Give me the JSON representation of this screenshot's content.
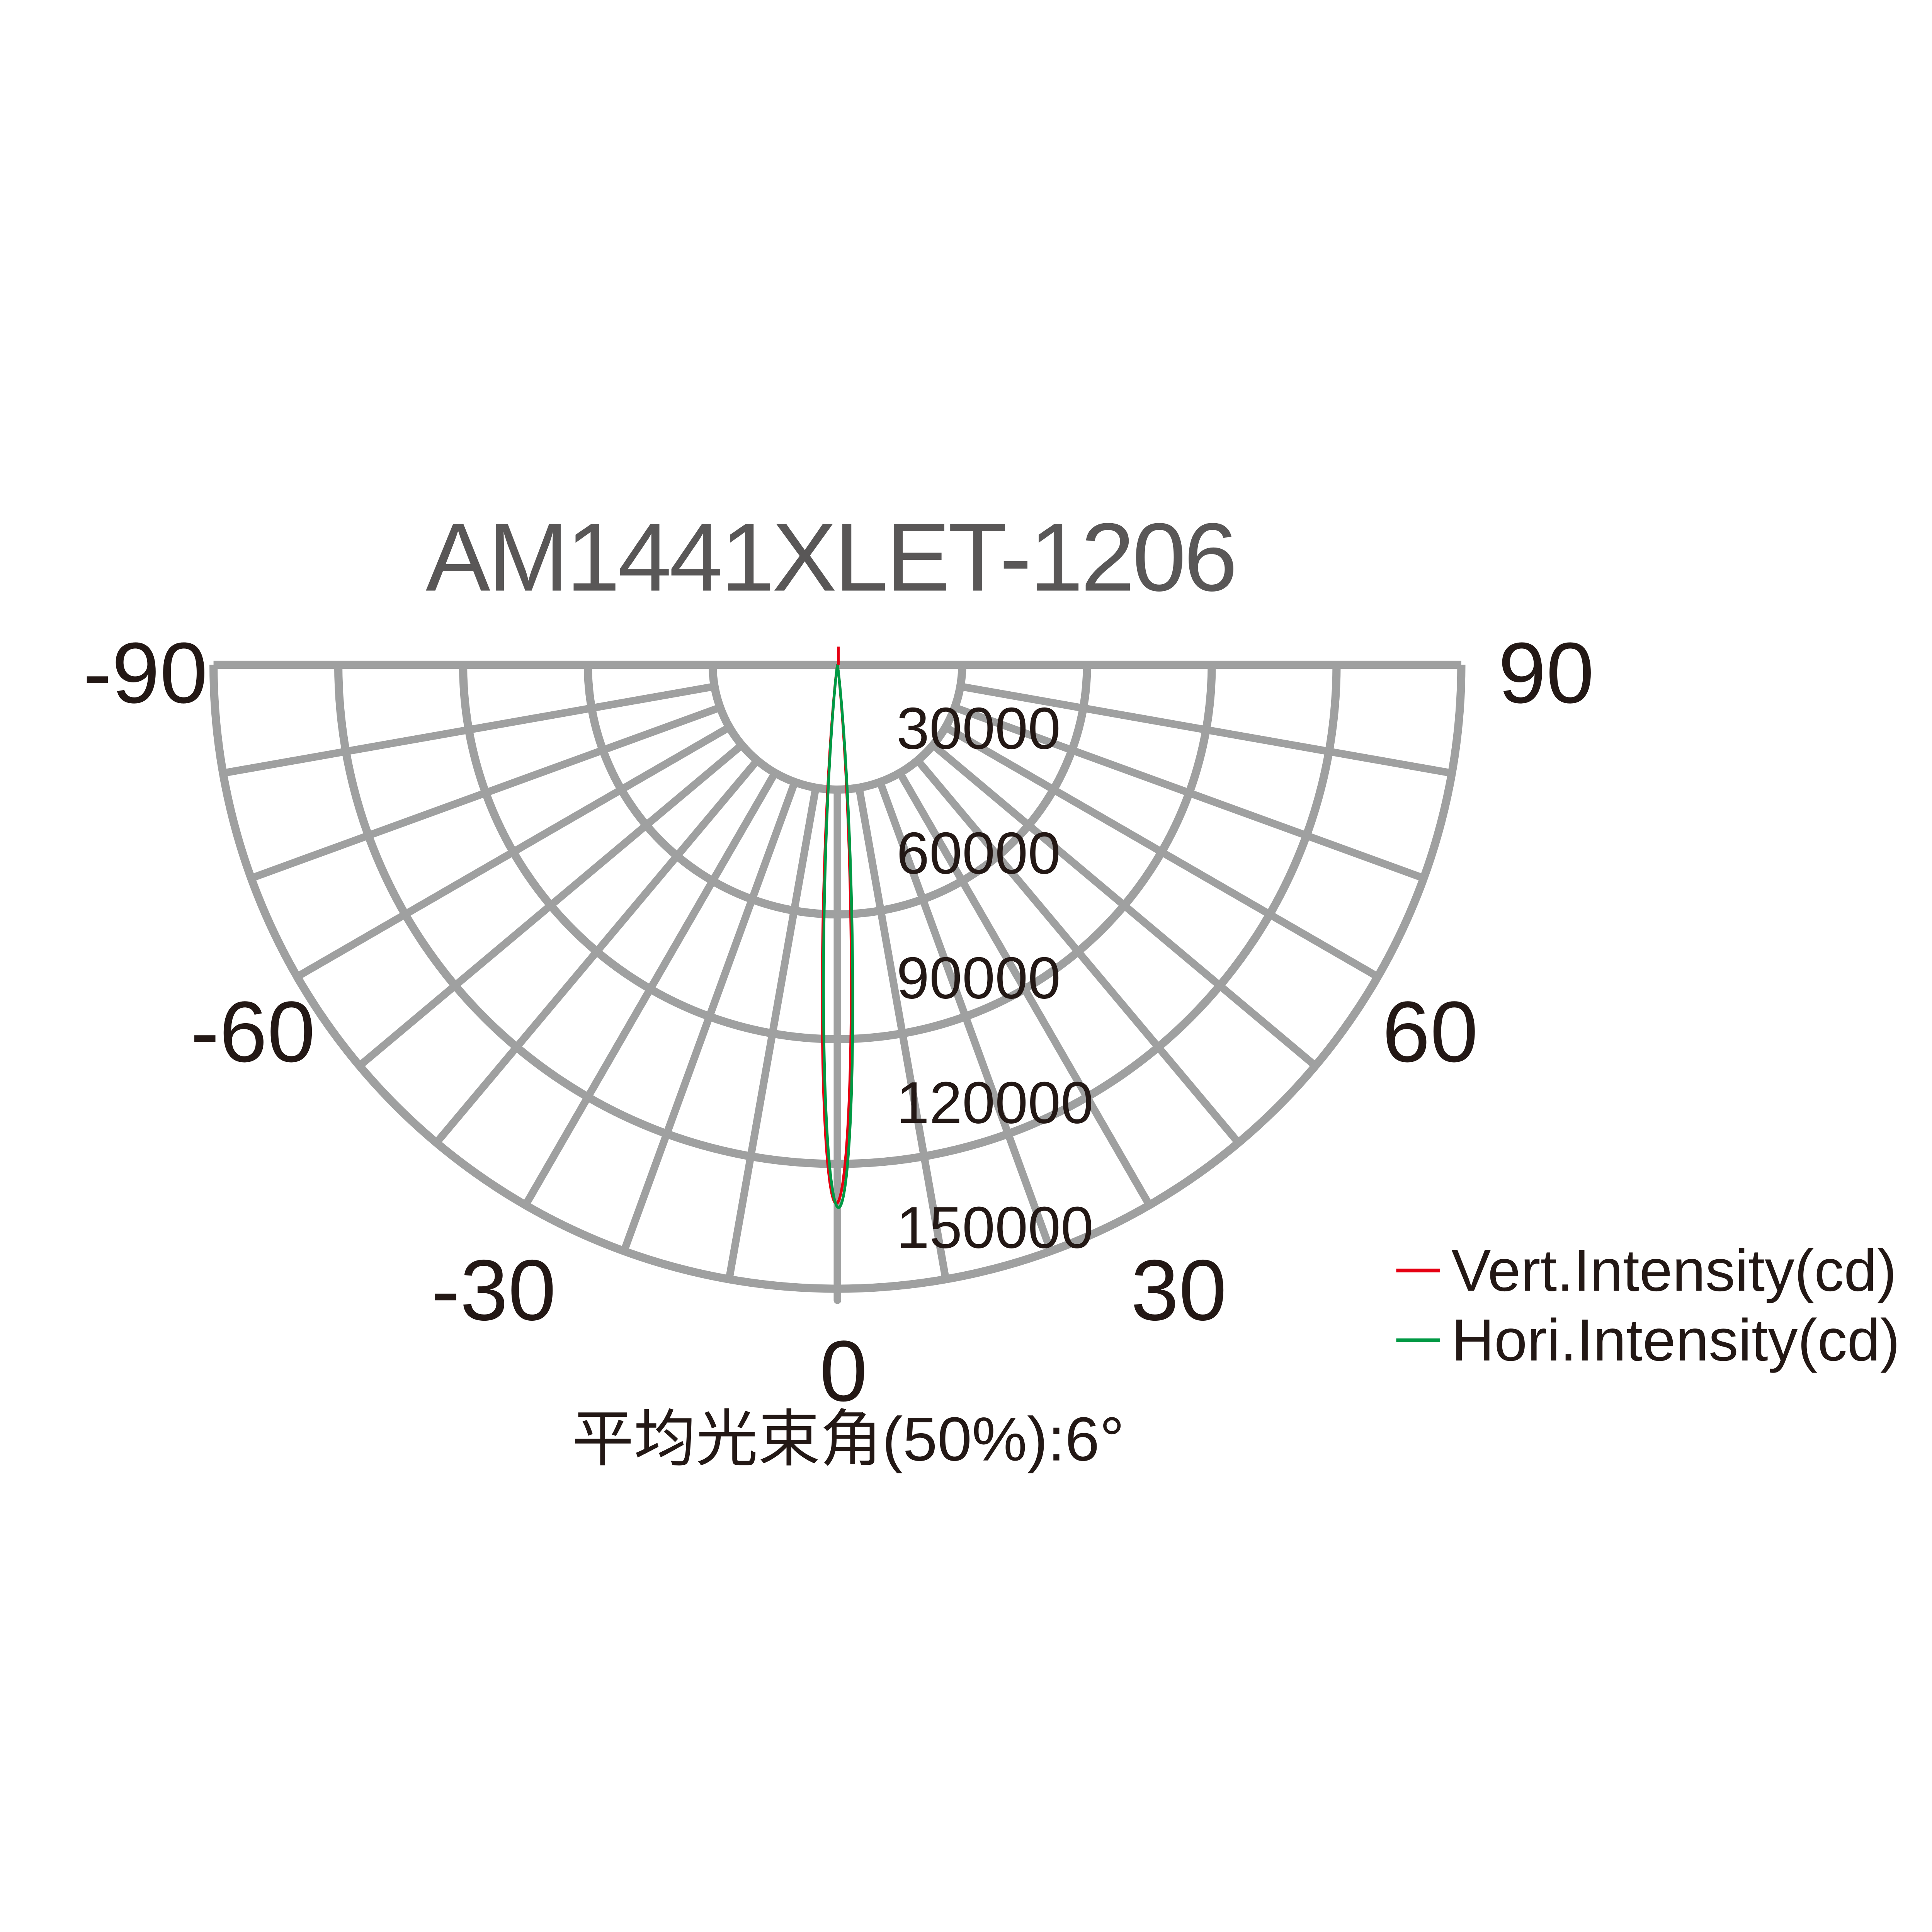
{
  "title": "AM1441XLET-1206",
  "footnote": "平均光束角(50%):6°",
  "legend": {
    "items": [
      {
        "label": "Vert.Intensity(cd)",
        "color": "#e60012"
      },
      {
        "label": "Hori.Intensity(cd)",
        "color": "#009944"
      }
    ]
  },
  "colors": {
    "grid": "#9fa0a0",
    "text": "#231815",
    "title": "#595757",
    "vert_curve": "#e60012",
    "hori_curve": "#009944",
    "background": "#ffffff"
  },
  "chart_data": {
    "type": "line",
    "subtype": "polar-intensity-fan",
    "title": "AM1441XLET-1206",
    "angle_axis": {
      "min_deg": -90,
      "max_deg": 90,
      "grid_step_deg": 10,
      "zero_direction": "down"
    },
    "radial_axis": {
      "unit": "cd",
      "min": 0,
      "max": 150000,
      "ticks": [
        30000,
        60000,
        90000,
        120000,
        150000
      ]
    },
    "angle_tick_labels": [
      "-90",
      "-60",
      "-30",
      "0",
      "30",
      "60",
      "90"
    ],
    "radial_tick_labels": [
      "30000",
      "60000",
      "90000",
      "120000",
      "150000"
    ],
    "beam_angle_50pct_deg": 6,
    "legend_position": "bottom-right",
    "grid": true,
    "series": [
      {
        "name": "Vert.Intensity(cd)",
        "color": "#e60012",
        "peak_cd": 129500,
        "peak_angle_deg": -0.12,
        "fwhm_deg": 6.0,
        "points": {
          "angle_deg": [
            -9,
            -8,
            -7,
            -6,
            -5,
            -4,
            -3,
            -2,
            -1,
            0,
            1,
            2,
            3,
            4,
            5,
            6,
            7,
            8,
            9
          ],
          "intensity_cd": [
            300,
            1080,
            3380,
            9030,
            20690,
            40620,
            68340,
            98640,
            122010,
            129360,
            117570,
            91610,
            61180,
            35040,
            17190,
            7230,
            2610,
            810,
            210
          ]
        }
      },
      {
        "name": "Hori.Intensity(cd)",
        "color": "#009944",
        "peak_cd": 130500,
        "peak_angle_deg": 0.12,
        "fwhm_deg": 6.0,
        "points": {
          "angle_deg": [
            -9,
            -8,
            -7,
            -6,
            -5,
            -4,
            -3,
            -2,
            -1,
            0,
            1,
            2,
            3,
            4,
            5,
            6,
            7,
            8,
            9
          ],
          "intensity_cd": [
            210,
            820,
            2630,
            7290,
            17320,
            35310,
            61660,
            92320,
            118480,
            130350,
            122950,
            99400,
            68870,
            40930,
            20850,
            9100,
            3400,
            1090,
            300
          ]
        }
      }
    ]
  }
}
